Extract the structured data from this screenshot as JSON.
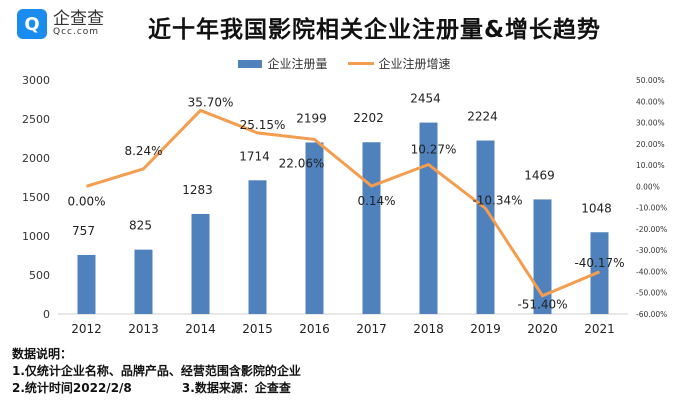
{
  "logo": {
    "cn": "企查查",
    "en": "Qcc.com"
  },
  "chart_data": {
    "type": "bar+line",
    "title": "近十年我国影院相关企业注册量&增长趋势",
    "categories": [
      "2012",
      "2013",
      "2014",
      "2015",
      "2016",
      "2017",
      "2018",
      "2019",
      "2020",
      "2021"
    ],
    "series": [
      {
        "name": "企业注册量",
        "type": "bar",
        "axis": "left",
        "values": [
          757,
          825,
          1283,
          1714,
          2199,
          2202,
          2454,
          2224,
          1469,
          1048
        ],
        "labels": [
          "757",
          "825",
          "1283",
          "1714",
          "2199",
          "2202",
          "2454",
          "2224",
          "1469",
          "1048"
        ]
      },
      {
        "name": "企业注册增速",
        "type": "line",
        "axis": "right",
        "values": [
          0.0,
          8.24,
          35.7,
          25.15,
          22.06,
          0.14,
          10.27,
          -10.34,
          -51.4,
          -40.17
        ],
        "labels": [
          "0.00%",
          "8.24%",
          "35.70%",
          "25.15%",
          "22.06%",
          "0.14%",
          "10.27%",
          "-10.34%",
          "-51.40%",
          "-40.17%"
        ]
      }
    ],
    "left_axis": {
      "ylim": [
        0,
        3000
      ],
      "ticks": [
        "0",
        "500",
        "1000",
        "1500",
        "2000",
        "2500",
        "3000"
      ]
    },
    "right_axis": {
      "ylim": [
        -60,
        50
      ],
      "ticks": [
        "-60.00%",
        "-50.00%",
        "-40.00%",
        "-30.00%",
        "-20.00%",
        "-10.00%",
        "0.00%",
        "10.00%",
        "20.00%",
        "30.00%",
        "40.00%",
        "50.00%"
      ]
    },
    "legend": "top-center",
    "colors": {
      "bar": "#4f81bd",
      "line": "#f59d4f"
    }
  },
  "footer": {
    "heading": "数据说明：",
    "line1": "1.仅统计企业名称、品牌产品、经营范围含影院的企业",
    "line2": "2.统计时间2022/2/8            3.数据来源：企查查"
  }
}
